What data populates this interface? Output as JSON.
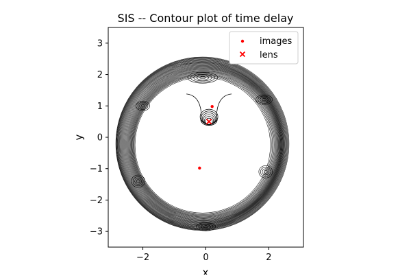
{
  "chart_data": {
    "type": "contour",
    "title": "SIS -- Contour plot of time delay",
    "xlabel": "x",
    "ylabel": "y",
    "xlim": [
      -3.1,
      3.1
    ],
    "ylim": [
      -3.5,
      3.5
    ],
    "aspect": "equal",
    "grid": false,
    "legend_position": "top-right",
    "x_ticks": [
      -2,
      0,
      2
    ],
    "y_ticks": [
      -3,
      -2,
      -1,
      0,
      1,
      2,
      3
    ],
    "x_tick_labels": [
      "−2",
      "0",
      "2"
    ],
    "y_tick_labels": [
      "−3",
      "−2",
      "−1",
      "0",
      "1",
      "2",
      "3"
    ],
    "contour_color": "#000000",
    "contour_region": {
      "center": [
        -0.1,
        -0.25
      ],
      "inner_radius": 2.15,
      "outer_radius": 2.75,
      "level_count": 34
    },
    "series": [
      {
        "name": "images",
        "marker": "dot",
        "color": "#ff0000",
        "points": [
          [
            0.2,
            0.98
          ],
          [
            -0.2,
            -0.98
          ]
        ]
      },
      {
        "name": "lens",
        "marker": "x",
        "color": "#ff0000",
        "points": [
          [
            0.1,
            0.5
          ]
        ]
      }
    ]
  }
}
